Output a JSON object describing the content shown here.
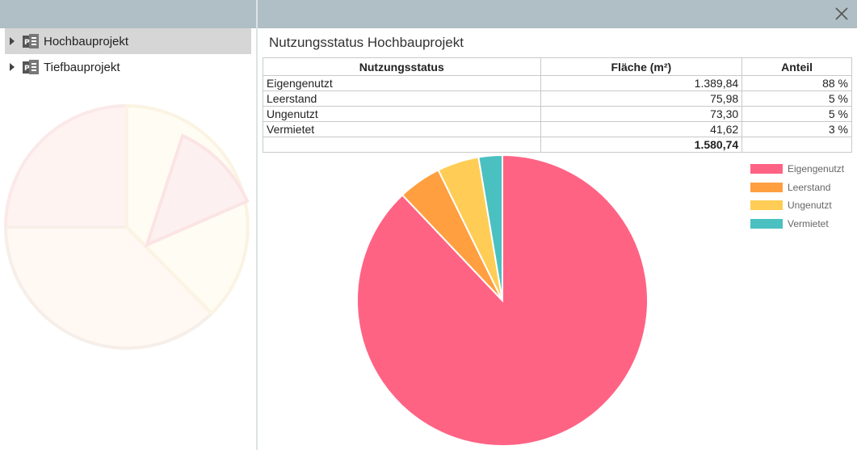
{
  "sidebar": {
    "items": [
      {
        "label": "Hochbauprojekt",
        "selected": true,
        "icon": "project-icon"
      },
      {
        "label": "Tiefbauprojekt",
        "selected": false,
        "icon": "project-icon"
      }
    ]
  },
  "main": {
    "title": "Nutzungsstatus Hochbauprojekt",
    "table": {
      "headers": [
        "Nutzungsstatus",
        "Fläche (m²)",
        "Anteil"
      ],
      "rows": [
        [
          "Eigengenutzt",
          "1.389,84",
          "88 %"
        ],
        [
          "Leerstand",
          "75,98",
          "5 %"
        ],
        [
          "Ungenutzt",
          "73,30",
          "5 %"
        ],
        [
          "Vermietet",
          "41,62",
          "3 %"
        ]
      ],
      "total": "1.580,74"
    }
  },
  "chart_data": {
    "type": "pie",
    "categories": [
      "Eigengenutzt",
      "Leerstand",
      "Ungenutzt",
      "Vermietet"
    ],
    "values": [
      1389.84,
      75.98,
      73.3,
      41.62
    ],
    "colors": [
      "#ff6384",
      "#ff9f40",
      "#ffcd56",
      "#4bc0c0"
    ],
    "legend_position": "top-right"
  },
  "colors": {
    "header_bg": "#b0bec5",
    "selected_bg": "#d6d6d6"
  }
}
